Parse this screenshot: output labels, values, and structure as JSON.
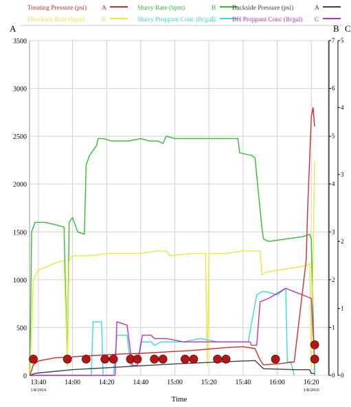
{
  "chart_data": {
    "type": "line",
    "xlabel": "Time",
    "x_ticks": [
      "13:40",
      "14:00",
      "14:20",
      "14:40",
      "15:00",
      "15:20",
      "15:40",
      "16:00",
      "16:20"
    ],
    "x_range_min": [
      13.58,
      16.5
    ],
    "date_labels": [
      {
        "label": "1/8/2016",
        "at": "13:40"
      },
      {
        "label": "1/8/2016",
        "at": "16:20"
      }
    ],
    "axes": {
      "A": {
        "label": "A",
        "min": 0,
        "max": 3500,
        "ticks": [
          0,
          500,
          1000,
          1500,
          2000,
          2500,
          3000,
          3500
        ]
      },
      "B": {
        "label": "B",
        "min": 0,
        "max": 7,
        "ticks": [
          0,
          1,
          2,
          3,
          4,
          5,
          6,
          7
        ]
      },
      "C": {
        "label": "C",
        "min": 0,
        "max": 5,
        "ticks": [
          0,
          1,
          2,
          3,
          4,
          5
        ]
      }
    },
    "legend": [
      {
        "name": "Treating Pressure (psi)",
        "axis": "A",
        "color": "#d42a2a"
      },
      {
        "name": "Slurry Rate (bpm)",
        "axis": "B",
        "color": "#2fbf2f"
      },
      {
        "name": "Backside Pressure (psi)",
        "axis": "A",
        "color": "#404040"
      },
      {
        "name": "Flowback Rate (bpm)",
        "axis": "B",
        "color": "#eaea3a"
      },
      {
        "name": "Slurry Proppant Conc (lb/gal)",
        "axis": "C",
        "color": "#35dcdc"
      },
      {
        "name": "BH Proppant Conc (lb/gal)",
        "axis": "C",
        "color": "#c030c0"
      }
    ],
    "series": [
      {
        "name": "Slurry Rate (bpm)",
        "axis": "B",
        "color": "#2fbf2f",
        "x": [
          "13:35",
          "13:36",
          "13:38",
          "13:40",
          "13:44",
          "13:50",
          "13:55",
          "13:57",
          "13:58",
          "14:00",
          "14:03",
          "14:07",
          "14:08",
          "14:10",
          "14:14",
          "14:15",
          "14:18",
          "14:23",
          "14:28",
          "14:33",
          "14:40",
          "14:45",
          "14:50",
          "14:53",
          "14:55",
          "15:00",
          "15:15",
          "15:30",
          "15:37",
          "15:38",
          "15:45",
          "15:47",
          "15:51",
          "15:52",
          "15:55",
          "16:05",
          "16:15",
          "16:19",
          "16:20",
          "16:22"
        ],
        "y": [
          0,
          3.0,
          3.2,
          3.2,
          3.2,
          3.15,
          3.1,
          0.2,
          3.2,
          3.3,
          3.0,
          2.95,
          4.4,
          4.6,
          4.8,
          4.95,
          4.95,
          4.9,
          4.9,
          4.9,
          4.95,
          4.9,
          4.9,
          4.85,
          5.0,
          4.95,
          4.95,
          4.95,
          4.95,
          4.65,
          4.6,
          4.55,
          3.1,
          2.85,
          2.8,
          2.85,
          2.9,
          2.95,
          2.85,
          0
        ]
      },
      {
        "name": "Flowback Rate (bpm)",
        "axis": "B",
        "color": "#eaea3a",
        "x": [
          "13:35",
          "13:37",
          "13:40",
          "13:50",
          "13:55",
          "13:57",
          "13:58",
          "14:00",
          "14:05",
          "14:10",
          "14:20",
          "14:30",
          "14:40",
          "14:50",
          "14:55",
          "14:57",
          "15:10",
          "15:18",
          "15:19",
          "15:20",
          "15:30",
          "15:40",
          "15:50",
          "15:51",
          "15:53",
          "16:00",
          "16:10",
          "16:18",
          "16:19",
          "16:20",
          "16:22"
        ],
        "y": [
          0,
          2.0,
          2.2,
          2.35,
          2.4,
          0.2,
          2.4,
          2.5,
          2.5,
          2.5,
          2.55,
          2.55,
          2.55,
          2.6,
          2.6,
          2.5,
          2.55,
          2.55,
          0.2,
          2.55,
          2.55,
          2.6,
          2.6,
          2.1,
          2.15,
          2.2,
          2.25,
          2.3,
          2.35,
          0.2,
          4.5
        ]
      },
      {
        "name": "Slurry Proppant Conc (lb/gal)",
        "axis": "C",
        "color": "#35dcdc",
        "x": [
          "13:35",
          "14:11",
          "14:12",
          "14:17",
          "14:18",
          "14:24",
          "14:26",
          "14:32",
          "14:34",
          "14:38",
          "14:40",
          "14:46",
          "14:48",
          "14:52",
          "14:55",
          "15:05",
          "15:15",
          "15:25",
          "15:35",
          "15:43",
          "15:48",
          "15:51",
          "15:54",
          "16:00",
          "16:05",
          "16:06",
          "16:08",
          "16:10"
        ],
        "y": [
          0,
          0,
          0.8,
          0.8,
          0,
          0,
          0.6,
          0.6,
          0.15,
          0.15,
          0.5,
          0.5,
          0.45,
          0.5,
          0.5,
          0.5,
          0.55,
          0.5,
          0.5,
          0.5,
          1.2,
          1.25,
          1.25,
          1.2,
          1.3,
          0.2,
          0.2,
          0
        ]
      },
      {
        "name": "BH Proppant Conc (lb/gal)",
        "axis": "C",
        "color": "#c030c0",
        "x": [
          "13:35",
          "14:25",
          "14:26",
          "14:32",
          "14:35",
          "14:38",
          "14:41",
          "14:46",
          "14:48",
          "14:55",
          "15:05",
          "15:15",
          "15:25",
          "15:35",
          "15:44",
          "15:45",
          "15:48",
          "15:50",
          "15:55",
          "16:05",
          "16:10",
          "16:15",
          "16:20",
          "16:22"
        ],
        "y": [
          0,
          0,
          0.8,
          0.75,
          0.15,
          0.15,
          0.6,
          0.6,
          0.55,
          0.55,
          0.5,
          0.5,
          0.5,
          0.5,
          0.5,
          0.45,
          0.45,
          1.1,
          1.15,
          1.3,
          1.25,
          1.2,
          1.15,
          0.2
        ]
      },
      {
        "name": "Treating Pressure (psi)",
        "axis": "A",
        "color": "#d42a2a",
        "x": [
          "13:35",
          "13:37",
          "13:40",
          "13:50",
          "13:57",
          "13:58",
          "14:00",
          "14:10",
          "14:20",
          "14:30",
          "14:40",
          "14:50",
          "15:00",
          "15:10",
          "15:20",
          "15:30",
          "15:40",
          "15:47",
          "15:50",
          "15:52",
          "16:00",
          "16:10",
          "16:17",
          "16:18",
          "16:20",
          "16:21",
          "16:22"
        ],
        "y": [
          0,
          110,
          150,
          185,
          190,
          160,
          195,
          205,
          215,
          225,
          230,
          240,
          250,
          260,
          275,
          290,
          300,
          280,
          160,
          110,
          120,
          140,
          1200,
          1800,
          2700,
          2800,
          2600
        ]
      },
      {
        "name": "Backside Pressure (psi)",
        "axis": "A",
        "color": "#404040",
        "x": [
          "13:35",
          "13:38",
          "13:40",
          "14:00",
          "14:20",
          "14:40",
          "15:00",
          "15:20",
          "15:40",
          "15:47",
          "15:52",
          "16:10",
          "16:19",
          "16:20",
          "16:22"
        ],
        "y": [
          0,
          20,
          25,
          60,
          80,
          100,
          120,
          135,
          150,
          155,
          70,
          60,
          60,
          20,
          20
        ]
      }
    ],
    "markers": {
      "color": "#b01818",
      "axis": "A",
      "points": [
        {
          "x": "13:37",
          "y": 170
        },
        {
          "x": "13:57",
          "y": 170
        },
        {
          "x": "14:08",
          "y": 170
        },
        {
          "x": "14:19",
          "y": 170
        },
        {
          "x": "14:24",
          "y": 170
        },
        {
          "x": "14:34",
          "y": 170
        },
        {
          "x": "14:38",
          "y": 170
        },
        {
          "x": "14:48",
          "y": 170
        },
        {
          "x": "14:53",
          "y": 170
        },
        {
          "x": "15:06",
          "y": 170
        },
        {
          "x": "15:11",
          "y": 170
        },
        {
          "x": "15:25",
          "y": 170
        },
        {
          "x": "15:30",
          "y": 170
        },
        {
          "x": "15:59",
          "y": 170
        },
        {
          "x": "16:22",
          "y": 320
        },
        {
          "x": "16:22",
          "y": 170
        }
      ]
    }
  }
}
